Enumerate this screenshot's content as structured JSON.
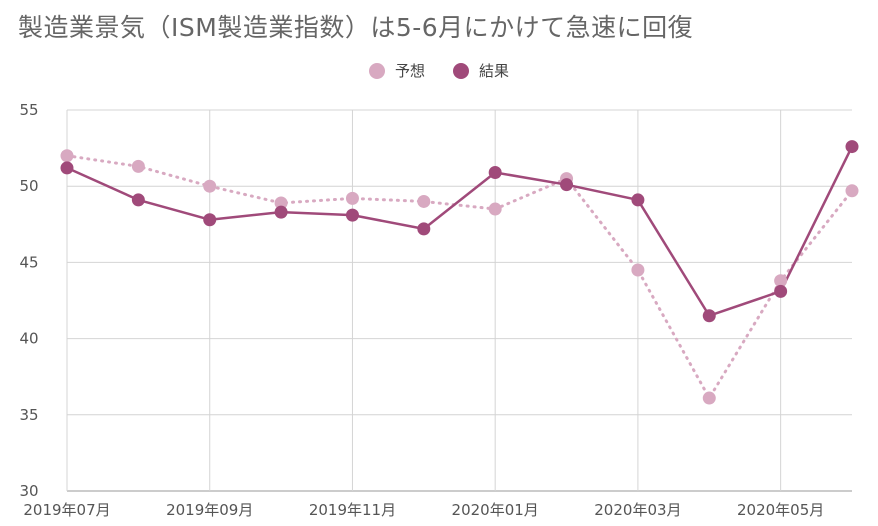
{
  "title": "製造業景気（ISM製造業指数）は5-6月にかけて急速に回復",
  "chart_data": {
    "type": "line",
    "title": "製造業景気（ISM製造業指数）は5-6月にかけて急速に回復",
    "xlabel": "",
    "ylabel": "",
    "ylim": [
      30,
      55
    ],
    "yticks": [
      30,
      35,
      40,
      45,
      50,
      55
    ],
    "x": [
      "2019年07月",
      "2019年08月",
      "2019年09月",
      "2019年10月",
      "2019年11月",
      "2019年12月",
      "2020年01月",
      "2020年02月",
      "2020年03月",
      "2020年04月",
      "2020年05月",
      "2020年06月"
    ],
    "x_tick_labels": [
      "2019年07月",
      "2019年09月",
      "2019年11月",
      "2020年01月",
      "2020年03月",
      "2020年05月"
    ],
    "grid": true,
    "legend_position": "top-center",
    "series": [
      {
        "name": "予想",
        "color": "#d8a9c1",
        "style": "dotted",
        "values": [
          52.0,
          51.3,
          50.0,
          48.9,
          49.2,
          49.0,
          48.5,
          50.5,
          44.5,
          36.1,
          43.8,
          49.7
        ]
      },
      {
        "name": "結果",
        "color": "#a04a7a",
        "style": "solid",
        "values": [
          51.2,
          49.1,
          47.8,
          48.3,
          48.1,
          47.2,
          50.9,
          50.1,
          49.1,
          41.5,
          43.1,
          52.6
        ]
      }
    ]
  }
}
